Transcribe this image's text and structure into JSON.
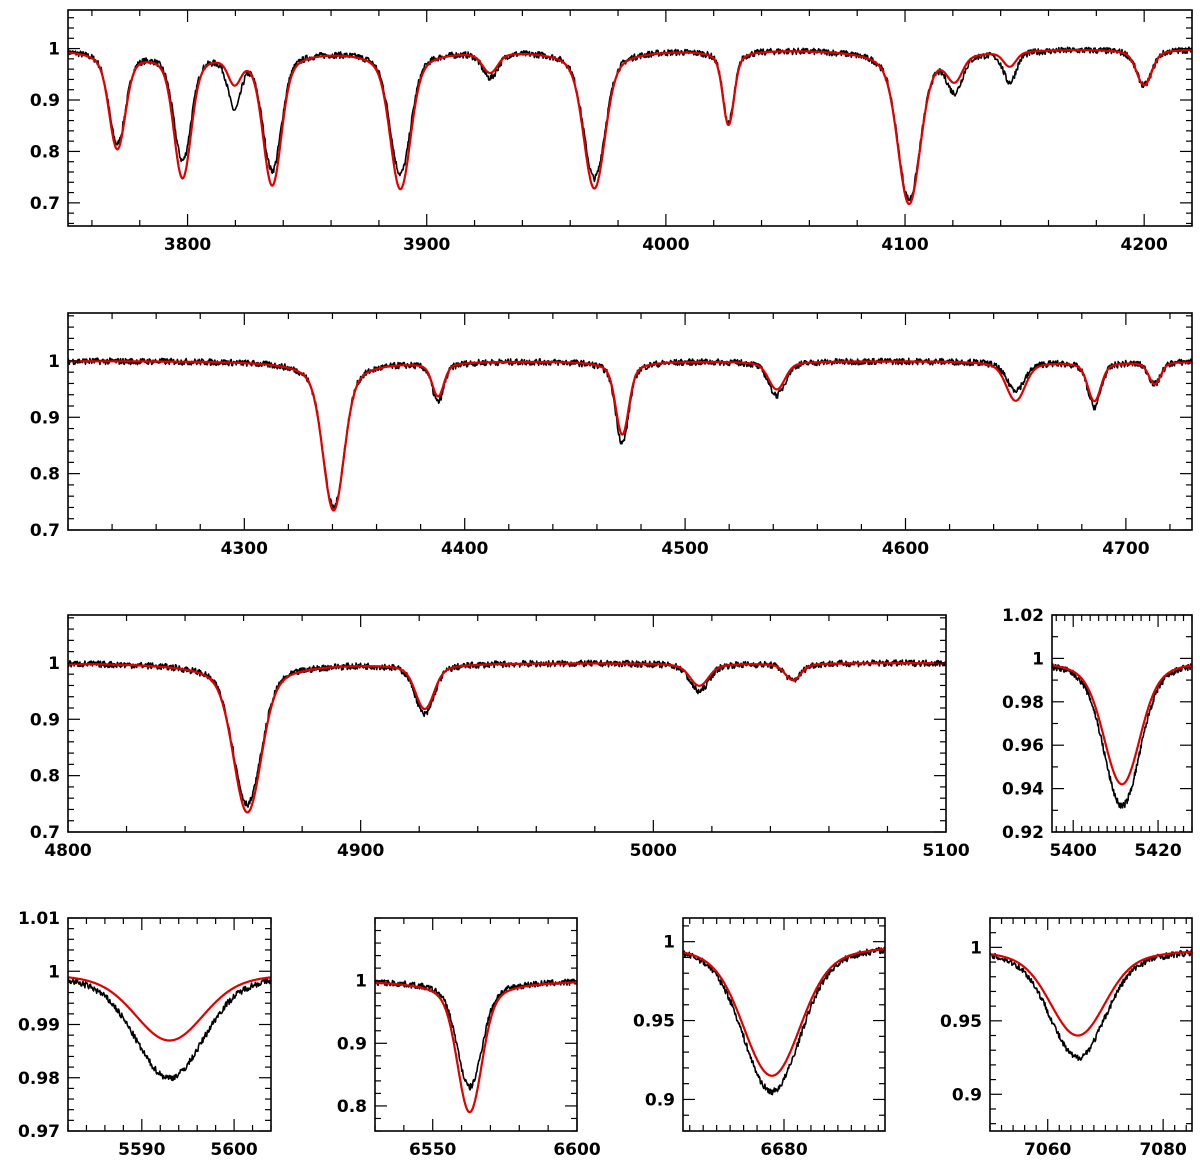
{
  "colors": {
    "observed": "#000000",
    "model": "#e00000",
    "frame": "#000000"
  },
  "chart_data": [
    {
      "type": "line",
      "xlim": [
        3750,
        4220
      ],
      "ylim": [
        0.655,
        1.075
      ],
      "xticks": [
        3800,
        3900,
        4000,
        4100,
        4200
      ],
      "xtick_labels": [
        "3800",
        "3900",
        "4000",
        "4100",
        "4200"
      ],
      "yticks": [
        0.7,
        0.8,
        0.9,
        1
      ],
      "ytick_labels": [
        "0.7",
        "0.8",
        "0.9",
        "1"
      ],
      "continuum": 1.0,
      "lines": [
        {
          "x": 3770.6,
          "depth": 0.19,
          "width": 3.2,
          "obs_depth": 0.18
        },
        {
          "x": 3797.9,
          "depth": 0.245,
          "width": 3.4,
          "obs_depth": 0.21
        },
        {
          "x": 3819.6,
          "depth": 0.05,
          "width": 2.5,
          "obs_depth": 0.1
        },
        {
          "x": 3835.4,
          "depth": 0.26,
          "width": 3.6,
          "obs_depth": 0.23
        },
        {
          "x": 3889.0,
          "depth": 0.27,
          "width": 4.0,
          "obs_depth": 0.24
        },
        {
          "x": 3926.5,
          "depth": 0.04,
          "width": 3.0,
          "obs_depth": 0.05
        },
        {
          "x": 3970.1,
          "depth": 0.27,
          "width": 4.2,
          "obs_depth": 0.25
        },
        {
          "x": 4026.2,
          "depth": 0.145,
          "width": 2.2,
          "obs_depth": 0.14
        },
        {
          "x": 4101.7,
          "depth": 0.3,
          "width": 4.4,
          "obs_depth": 0.29
        },
        {
          "x": 4120.8,
          "depth": 0.05,
          "width": 3.0,
          "obs_depth": 0.07
        },
        {
          "x": 4143.8,
          "depth": 0.03,
          "width": 2.5,
          "obs_depth": 0.06
        },
        {
          "x": 4200.0,
          "depth": 0.07,
          "width": 3.0,
          "obs_depth": 0.07
        }
      ]
    },
    {
      "type": "line",
      "xlim": [
        4220,
        4730
      ],
      "ylim": [
        0.7,
        1.085
      ],
      "xticks": [
        4300,
        4400,
        4500,
        4600,
        4700
      ],
      "xtick_labels": [
        "4300",
        "4400",
        "4500",
        "4600",
        "4700"
      ],
      "yticks": [
        0.7,
        0.8,
        0.9,
        1
      ],
      "ytick_labels": [
        "0.7",
        "0.8",
        "0.9",
        "1"
      ],
      "continuum": 1.0,
      "lines": [
        {
          "x": 4340.5,
          "depth": 0.265,
          "width": 4.5,
          "obs_depth": 0.26
        },
        {
          "x": 4387.9,
          "depth": 0.06,
          "width": 2.5,
          "obs_depth": 0.07
        },
        {
          "x": 4471.5,
          "depth": 0.13,
          "width": 2.8,
          "obs_depth": 0.145
        },
        {
          "x": 4541.6,
          "depth": 0.05,
          "width": 3.5,
          "obs_depth": 0.06
        },
        {
          "x": 4650.0,
          "depth": 0.07,
          "width": 4.0,
          "obs_depth": 0.05
        },
        {
          "x": 4685.7,
          "depth": 0.07,
          "width": 2.8,
          "obs_depth": 0.08
        },
        {
          "x": 4713.1,
          "depth": 0.04,
          "width": 2.5,
          "obs_depth": 0.04
        }
      ]
    },
    {
      "type": "line",
      "xlim": [
        4800,
        5100
      ],
      "ylim": [
        0.7,
        1.085
      ],
      "xticks": [
        4800,
        4900,
        5000,
        5100
      ],
      "xtick_labels": [
        "4800",
        "4900",
        "5000",
        "5100"
      ],
      "yticks": [
        0.7,
        0.8,
        0.9,
        1
      ],
      "ytick_labels": [
        "0.7",
        "0.8",
        "0.9",
        "1"
      ],
      "continuum": 1.0,
      "lines": [
        {
          "x": 4861.3,
          "depth": 0.265,
          "width": 4.5,
          "obs_depth": 0.25
        },
        {
          "x": 4921.9,
          "depth": 0.08,
          "width": 3.0,
          "obs_depth": 0.09
        },
        {
          "x": 5015.7,
          "depth": 0.04,
          "width": 3.0,
          "obs_depth": 0.05
        },
        {
          "x": 5047.7,
          "depth": 0.03,
          "width": 2.5,
          "obs_depth": 0.03
        }
      ]
    },
    {
      "type": "line",
      "xlim": [
        5395,
        5428
      ],
      "ylim": [
        0.92,
        1.02
      ],
      "xticks": [
        5400,
        5420
      ],
      "xtick_labels": [
        "5400",
        "5420"
      ],
      "yticks": [
        0.92,
        0.94,
        0.96,
        0.98,
        1,
        1.02
      ],
      "ytick_labels": [
        "0.92",
        "0.94",
        "0.96",
        "0.98",
        "1",
        "1.02"
      ],
      "continuum": 1.0,
      "lines": [
        {
          "x": 5411.5,
          "depth": 0.058,
          "width": 4.0,
          "obs_depth": 0.068
        }
      ]
    },
    {
      "type": "line",
      "xlim": [
        5582,
        5604
      ],
      "ylim": [
        0.97,
        1.01
      ],
      "xticks": [
        5590,
        5600
      ],
      "xtick_labels": [
        "5590",
        "5600"
      ],
      "yticks": [
        0.97,
        0.98,
        0.99,
        1,
        1.01
      ],
      "ytick_labels": [
        "0.97",
        "0.98",
        "0.99",
        "1",
        "1.01"
      ],
      "continuum": 1.0,
      "lines": [
        {
          "x": 5593.0,
          "depth": 0.013,
          "width": 3.5,
          "obs_depth": 0.02
        }
      ]
    },
    {
      "type": "line",
      "xlim": [
        6530,
        6600
      ],
      "ylim": [
        0.76,
        1.1
      ],
      "xticks": [
        6550,
        6600
      ],
      "xtick_labels": [
        "6550",
        "6600"
      ],
      "yticks": [
        0.8,
        0.9,
        1
      ],
      "ytick_labels": [
        "0.8",
        "0.9",
        "1"
      ],
      "continuum": 1.0,
      "lines": [
        {
          "x": 6562.8,
          "depth": 0.21,
          "width": 4.0,
          "obs_depth": 0.17
        }
      ]
    },
    {
      "type": "line",
      "xlim": [
        6665,
        6695
      ],
      "ylim": [
        0.88,
        1.015
      ],
      "xticks": [
        6680
      ],
      "xtick_labels": [
        "6680"
      ],
      "yticks": [
        0.9,
        0.95,
        1
      ],
      "ytick_labels": [
        "0.9",
        "0.95",
        "1"
      ],
      "continuum": 1.0,
      "lines": [
        {
          "x": 6678.2,
          "depth": 0.085,
          "width": 4.0,
          "obs_depth": 0.095
        }
      ]
    },
    {
      "type": "line",
      "xlim": [
        7050,
        7085
      ],
      "ylim": [
        0.875,
        1.02
      ],
      "xticks": [
        7060,
        7080
      ],
      "xtick_labels": [
        "7060",
        "7080"
      ],
      "yticks": [
        0.9,
        0.95,
        1
      ],
      "ytick_labels": [
        "0.9",
        "0.95",
        "1"
      ],
      "continuum": 1.0,
      "lines": [
        {
          "x": 7065.2,
          "depth": 0.06,
          "width": 4.5,
          "obs_depth": 0.075
        }
      ]
    }
  ]
}
